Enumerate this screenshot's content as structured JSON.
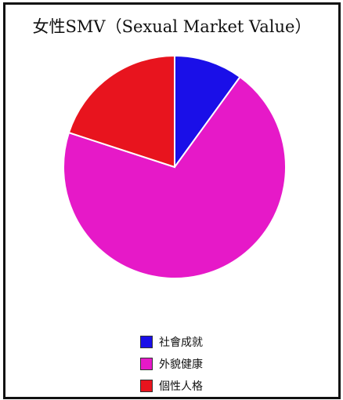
{
  "chart_data": {
    "type": "pie",
    "title": "女性SMV（Sexual Market Value）",
    "categories": [
      "社會成就",
      "外貌健康",
      "個性人格"
    ],
    "values": [
      10,
      70,
      20
    ],
    "colors": [
      "#1a0fe8",
      "#e619c8",
      "#e8141e"
    ],
    "legend_position": "bottom"
  }
}
